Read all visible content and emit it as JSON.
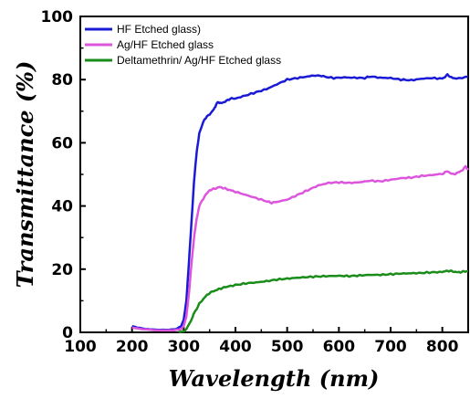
{
  "chart_data": {
    "type": "line",
    "title": "",
    "xlabel": "Wavelength (nm)",
    "ylabel": "Transmittance (%)",
    "xlim": [
      100,
      850
    ],
    "ylim": [
      0,
      100
    ],
    "x_ticks": [
      100,
      200,
      300,
      400,
      500,
      600,
      700,
      800
    ],
    "y_ticks": [
      0,
      20,
      40,
      60,
      80,
      100
    ],
    "grid": false,
    "legend_position": "top-left",
    "series": [
      {
        "name": "HF Etched glass)",
        "color": "#1a1ad6",
        "points": [
          [
            200,
            2.0
          ],
          [
            210,
            1.5
          ],
          [
            230,
            1.0
          ],
          [
            250,
            0.8
          ],
          [
            270,
            0.8
          ],
          [
            285,
            1.0
          ],
          [
            295,
            2.0
          ],
          [
            300,
            4.0
          ],
          [
            305,
            10.0
          ],
          [
            310,
            22.0
          ],
          [
            315,
            35.0
          ],
          [
            320,
            48.0
          ],
          [
            325,
            57.0
          ],
          [
            330,
            63.0
          ],
          [
            340,
            67.5
          ],
          [
            350,
            69.0
          ],
          [
            360,
            71.0
          ],
          [
            365,
            73.0
          ],
          [
            370,
            72.5
          ],
          [
            380,
            73.0
          ],
          [
            390,
            74.0
          ],
          [
            400,
            74.0
          ],
          [
            420,
            75.0
          ],
          [
            440,
            76.0
          ],
          [
            460,
            77.0
          ],
          [
            480,
            78.5
          ],
          [
            500,
            80.0
          ],
          [
            520,
            80.5
          ],
          [
            540,
            81.0
          ],
          [
            555,
            81.2
          ],
          [
            570,
            81.0
          ],
          [
            590,
            80.5
          ],
          [
            610,
            80.7
          ],
          [
            630,
            80.6
          ],
          [
            650,
            80.5
          ],
          [
            660,
            81.0
          ],
          [
            680,
            80.6
          ],
          [
            700,
            80.5
          ],
          [
            720,
            80.0
          ],
          [
            740,
            79.8
          ],
          [
            760,
            80.3
          ],
          [
            780,
            80.5
          ],
          [
            800,
            80.3
          ],
          [
            810,
            81.5
          ],
          [
            820,
            80.5
          ],
          [
            835,
            80.5
          ],
          [
            850,
            81.0
          ]
        ]
      },
      {
        "name": "Ag/HF Etched glass",
        "color": "#dd55dd",
        "points": [
          [
            200,
            1.5
          ],
          [
            220,
            1.0
          ],
          [
            250,
            0.6
          ],
          [
            280,
            0.6
          ],
          [
            295,
            1.0
          ],
          [
            300,
            2.0
          ],
          [
            305,
            5.0
          ],
          [
            310,
            12.0
          ],
          [
            315,
            22.0
          ],
          [
            320,
            30.0
          ],
          [
            325,
            36.0
          ],
          [
            330,
            40.0
          ],
          [
            340,
            43.0
          ],
          [
            350,
            45.0
          ],
          [
            360,
            45.5
          ],
          [
            370,
            46.0
          ],
          [
            380,
            45.5
          ],
          [
            390,
            45.0
          ],
          [
            400,
            44.5
          ],
          [
            420,
            43.5
          ],
          [
            440,
            42.5
          ],
          [
            460,
            41.5
          ],
          [
            470,
            41.0
          ],
          [
            480,
            41.3
          ],
          [
            500,
            42.0
          ],
          [
            520,
            43.5
          ],
          [
            540,
            45.0
          ],
          [
            560,
            46.5
          ],
          [
            580,
            47.3
          ],
          [
            600,
            47.5
          ],
          [
            620,
            47.3
          ],
          [
            640,
            47.5
          ],
          [
            660,
            48.0
          ],
          [
            680,
            47.8
          ],
          [
            700,
            48.3
          ],
          [
            720,
            48.8
          ],
          [
            740,
            49.0
          ],
          [
            760,
            49.5
          ],
          [
            780,
            49.8
          ],
          [
            800,
            50.2
          ],
          [
            810,
            51.0
          ],
          [
            820,
            50.0
          ],
          [
            830,
            50.5
          ],
          [
            840,
            51.5
          ],
          [
            845,
            52.5
          ],
          [
            850,
            51.5
          ]
        ]
      },
      {
        "name": "Deltamethrin/ Ag/HF Etched glass",
        "color": "#1a8c1a",
        "points": [
          [
            290,
            0.1
          ],
          [
            300,
            0.3
          ],
          [
            305,
            1.0
          ],
          [
            310,
            2.5
          ],
          [
            315,
            4.0
          ],
          [
            320,
            6.0
          ],
          [
            330,
            9.0
          ],
          [
            340,
            11.0
          ],
          [
            350,
            12.5
          ],
          [
            360,
            13.2
          ],
          [
            370,
            13.8
          ],
          [
            380,
            14.3
          ],
          [
            400,
            15.0
          ],
          [
            420,
            15.5
          ],
          [
            440,
            15.8
          ],
          [
            460,
            16.2
          ],
          [
            480,
            16.7
          ],
          [
            500,
            17.0
          ],
          [
            520,
            17.3
          ],
          [
            540,
            17.5
          ],
          [
            560,
            17.7
          ],
          [
            580,
            17.8
          ],
          [
            600,
            17.9
          ],
          [
            620,
            17.8
          ],
          [
            640,
            18.0
          ],
          [
            660,
            18.2
          ],
          [
            680,
            18.2
          ],
          [
            700,
            18.4
          ],
          [
            720,
            18.6
          ],
          [
            740,
            18.7
          ],
          [
            760,
            18.8
          ],
          [
            780,
            19.0
          ],
          [
            800,
            19.1
          ],
          [
            810,
            19.5
          ],
          [
            820,
            19.3
          ],
          [
            830,
            19.0
          ],
          [
            840,
            19.2
          ],
          [
            850,
            19.4
          ]
        ]
      }
    ]
  }
}
